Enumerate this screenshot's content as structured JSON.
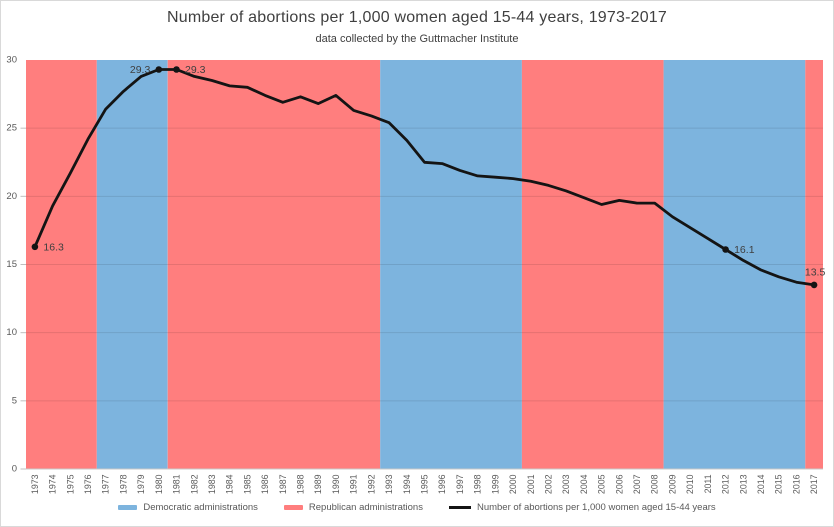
{
  "colors": {
    "democratic": "#7DB4DE",
    "republican": "#FF7E7E",
    "line": "#141414",
    "grid": "rgba(0,0,0,0.10)",
    "axis_line": "#c8c8c8",
    "tick": "#bfbfbf",
    "axis_text": "#595959",
    "title_text": "#404040",
    "label_text": "#3f3f3f"
  },
  "chart_data": {
    "type": "line",
    "title": "Number of abortions per 1,000 women aged 15-44 years, 1973-2017",
    "subtitle": "data collected by the Guttmacher Institute",
    "xlabel": "",
    "ylabel": "",
    "x": [
      1973,
      1974,
      1975,
      1976,
      1977,
      1978,
      1979,
      1980,
      1981,
      1982,
      1983,
      1984,
      1985,
      1986,
      1987,
      1988,
      1989,
      1990,
      1991,
      1992,
      1993,
      1994,
      1995,
      1996,
      1997,
      1998,
      1999,
      2000,
      2001,
      2002,
      2003,
      2004,
      2005,
      2006,
      2007,
      2008,
      2009,
      2010,
      2011,
      2012,
      2013,
      2014,
      2015,
      2016,
      2017
    ],
    "series": [
      {
        "name": "Number of abortions per 1,000 women aged 15-44 years",
        "values": [
          16.3,
          19.3,
          21.7,
          24.2,
          26.4,
          27.7,
          28.8,
          29.3,
          29.3,
          28.8,
          28.5,
          28.1,
          28.0,
          27.4,
          26.9,
          27.3,
          26.8,
          27.4,
          26.3,
          25.9,
          25.4,
          24.1,
          22.5,
          22.4,
          21.9,
          21.5,
          21.4,
          21.3,
          21.1,
          20.8,
          20.4,
          19.9,
          19.4,
          19.7,
          19.5,
          19.5,
          18.5,
          17.7,
          16.9,
          16.1,
          15.3,
          14.6,
          14.1,
          13.7,
          13.5
        ]
      }
    ],
    "ylim": [
      0,
      30
    ],
    "yticks": [
      0,
      5,
      10,
      15,
      20,
      25,
      30
    ],
    "grid": true,
    "legend_position": "bottom",
    "background_bands": [
      {
        "party": "republican",
        "from": 1973,
        "to": 1976
      },
      {
        "party": "democratic",
        "from": 1977,
        "to": 1980
      },
      {
        "party": "republican",
        "from": 1981,
        "to": 1992
      },
      {
        "party": "democratic",
        "from": 1993,
        "to": 2000
      },
      {
        "party": "republican",
        "from": 2001,
        "to": 2008
      },
      {
        "party": "democratic",
        "from": 2009,
        "to": 2016
      },
      {
        "party": "republican",
        "from": 2017,
        "to": 2017
      }
    ],
    "labeled_points": [
      {
        "x": 1973,
        "value": 16.3,
        "label": "16.3",
        "placement": "right"
      },
      {
        "x": 1980,
        "value": 29.3,
        "label": "29.3",
        "placement": "left"
      },
      {
        "x": 1981,
        "value": 29.3,
        "label": "29.3",
        "placement": "right"
      },
      {
        "x": 2012,
        "value": 16.1,
        "label": "16.1",
        "placement": "right"
      },
      {
        "x": 2017,
        "value": 13.5,
        "label": "13.5",
        "placement": "above"
      }
    ]
  },
  "legend": {
    "items": [
      {
        "label": "Democratic administrations",
        "swatch": "box",
        "color": "#7DB4DE"
      },
      {
        "label": "Republican administrations",
        "swatch": "box",
        "color": "#FF7E7E"
      },
      {
        "label": "Number of abortions per 1,000 women aged 15-44 years",
        "swatch": "line",
        "color": "#141414"
      }
    ]
  }
}
